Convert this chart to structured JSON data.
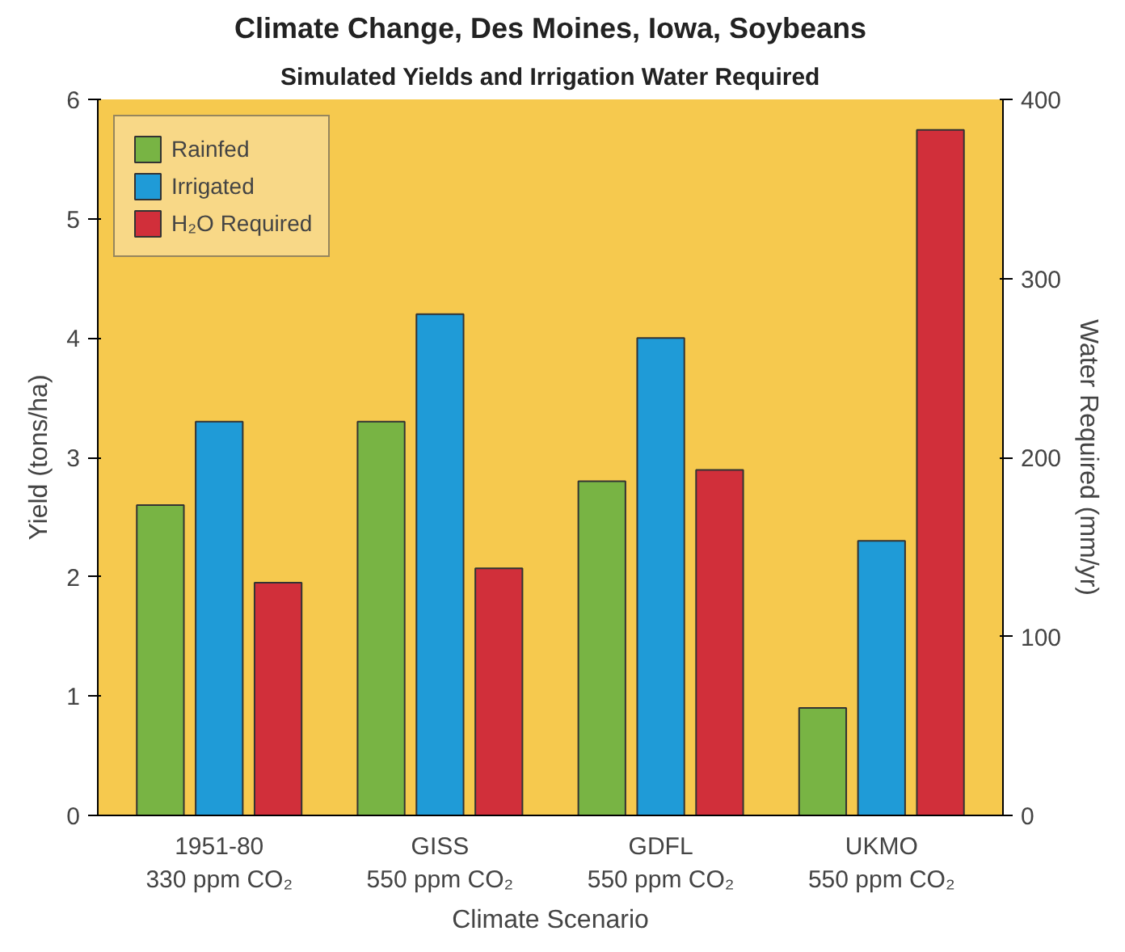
{
  "chart_data": {
    "type": "bar",
    "title": "Climate Change, Des Moines, Iowa, Soybeans",
    "subtitle": "Simulated Yields and Irrigation Water Required",
    "xlabel": "Climate Scenario",
    "ylabel": "Yield (tons/ha)",
    "y2label": "Water Required (mm/yr)",
    "categories": [
      "1951-80\n330 ppm CO₂",
      "GISS\n550 ppm CO₂",
      "GDFL\n550 ppm CO₂",
      "UKMO\n550 ppm CO₂"
    ],
    "series": [
      {
        "name": "Rainfed",
        "color": "#78b444",
        "values": [
          2.6,
          3.3,
          2.8,
          0.9
        ]
      },
      {
        "name": "Irrigated",
        "color": "#1f9bd7",
        "values": [
          3.3,
          4.2,
          4.0,
          2.3
        ]
      },
      {
        "name": "H₂O Required",
        "color": "#d12f3a",
        "values": [
          130,
          138,
          193,
          383
        ],
        "axis": "y2"
      }
    ],
    "ylim": [
      0,
      6
    ],
    "yticks": [
      0,
      1,
      2,
      3,
      4,
      5,
      6
    ],
    "y2lim": [
      0,
      400
    ],
    "y2ticks": [
      0,
      100,
      200,
      300,
      400
    ],
    "grid": false,
    "legend": "top left"
  }
}
